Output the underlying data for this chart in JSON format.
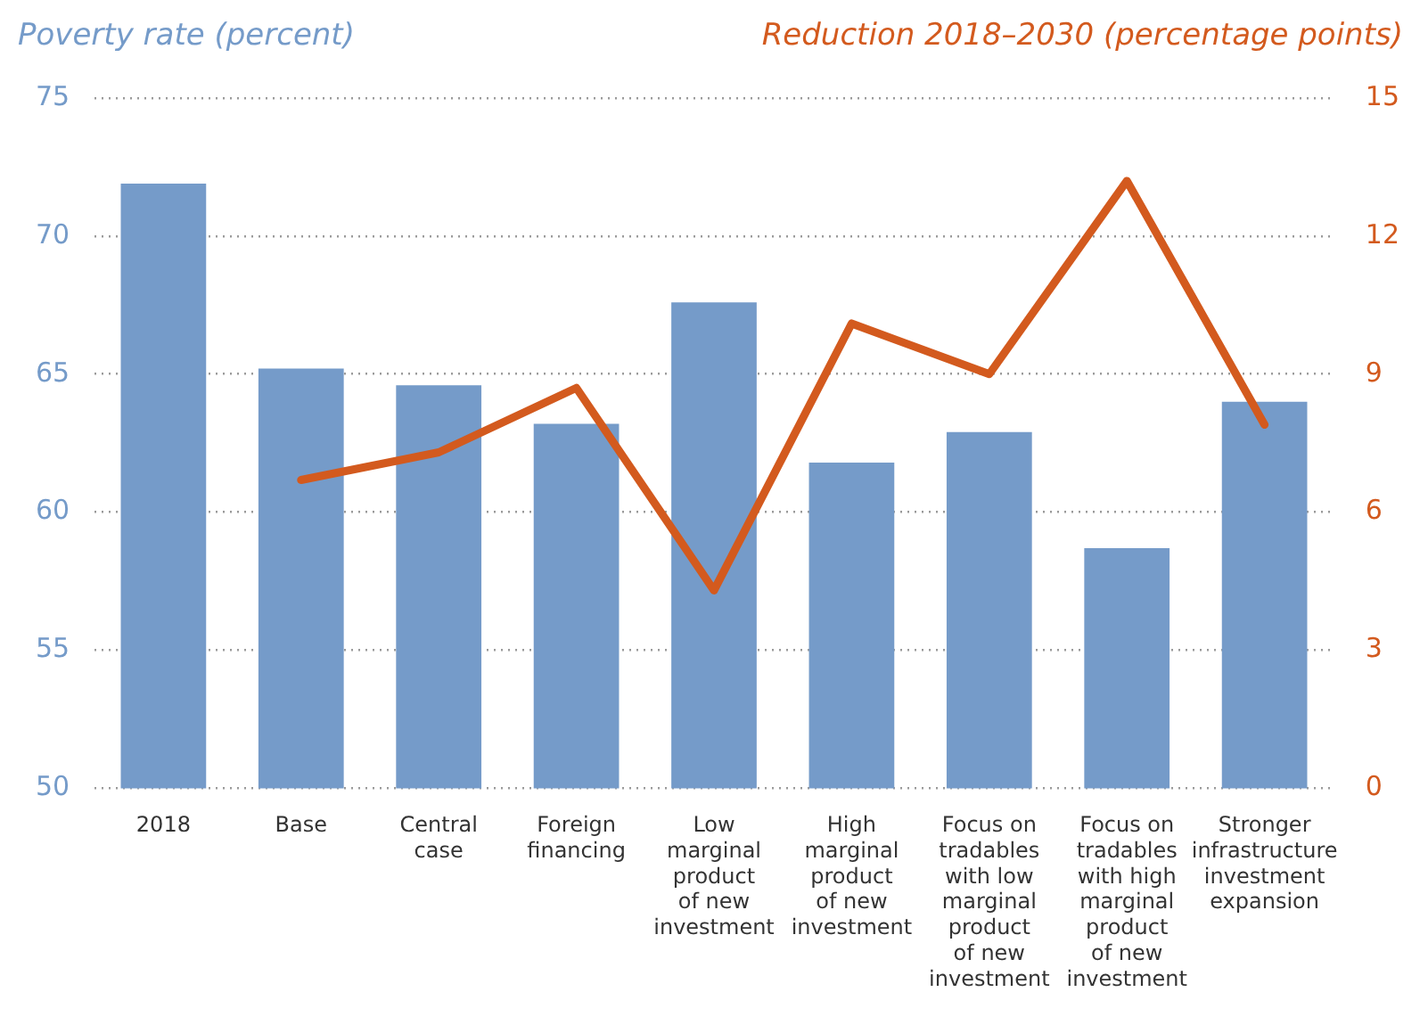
{
  "chart_data": {
    "type": "bar",
    "ylabel": "Poverty rate (percent)",
    "y2label": "Reduction 2018–2030 (percentage points)",
    "categories": [
      "2018",
      "Base",
      "Central case",
      "Foreign financing",
      "Low marginal product of new investment",
      "High marginal product of new investment",
      "Focus on tradables with low marginal product of new investment",
      "Focus on tradables with high marginal product of new investment",
      "Stronger infrastructure investment expansion"
    ],
    "series": [
      {
        "color": "#759bc9",
        "values": [
          71.9,
          65.2,
          64.6,
          63.2,
          67.6,
          61.8,
          62.9,
          58.7,
          64.0
        ]
      },
      {
        "type": "line",
        "axis": "y2",
        "color": "#d35a1e",
        "values": [
          null,
          6.7,
          7.3,
          8.7,
          4.3,
          10.1,
          9.0,
          13.2,
          7.9
        ]
      }
    ],
    "ylim": [
      50,
      75
    ],
    "yticks": [
      50,
      55,
      60,
      65,
      70,
      75
    ],
    "y2lim": [
      0,
      15
    ],
    "y2ticks": [
      0,
      3,
      6,
      9,
      12,
      15
    ],
    "grid": "y",
    "legend": false
  }
}
